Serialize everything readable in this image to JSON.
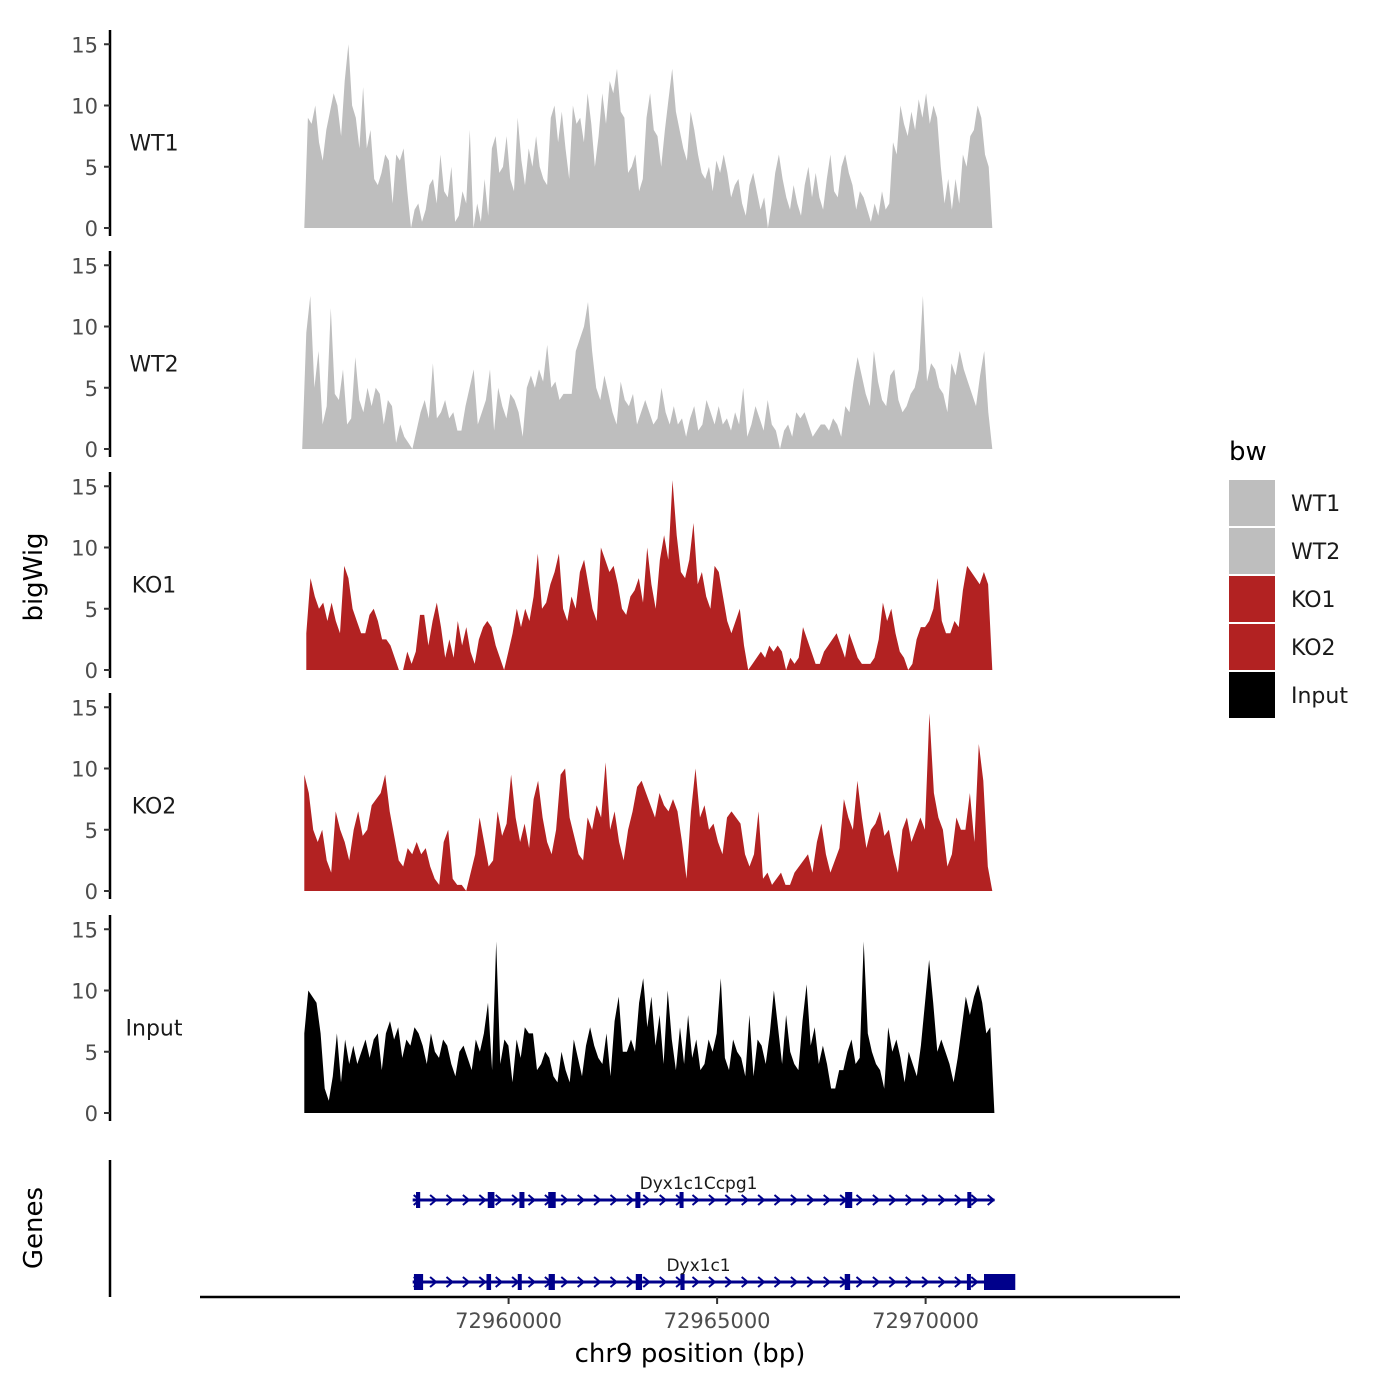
{
  "chart_data": {
    "type": "area",
    "ylabel": "bigWig",
    "xlabel": "chr9 position (bp)",
    "xlim": [
      72952600,
      72976100
    ],
    "ylim": [
      0,
      16
    ],
    "y_ticks": [
      0,
      5,
      10,
      15
    ],
    "y_tick_labels": [
      "0",
      "5",
      "10",
      "15"
    ],
    "x_ticks": [
      72960000,
      72965000,
      72970000
    ],
    "x_tick_labels": [
      "72960000",
      "72965000",
      "72970000"
    ],
    "legend": {
      "title": "bw",
      "position": "right",
      "items": [
        {
          "label": "WT1",
          "color": "#bebebe"
        },
        {
          "label": "WT2",
          "color": "#bebebe"
        },
        {
          "label": "KO1",
          "color": "#b22222"
        },
        {
          "label": "KO2",
          "color": "#b22222"
        },
        {
          "label": "Input",
          "color": "#000000"
        }
      ]
    },
    "series": [
      {
        "name": "WT1",
        "color": "#bebebe",
        "x_start": 72955100,
        "x_end": 72971600,
        "values": [
          0,
          9,
          8.5,
          10,
          7,
          5.5,
          8,
          9.5,
          11,
          10,
          7.5,
          12,
          15,
          10,
          9,
          6.5,
          11.5,
          6.5,
          8,
          4,
          3.5,
          4.5,
          6,
          5.5,
          2,
          6,
          5.5,
          6.5,
          3,
          0,
          1.5,
          2,
          0.5,
          1.5,
          3.5,
          4,
          2,
          6,
          3,
          2.5,
          5,
          0.5,
          1,
          3,
          2,
          8,
          0,
          2,
          0.5,
          4,
          1,
          6.5,
          7.5,
          4.5,
          5,
          7.5,
          4,
          3,
          9,
          5.5,
          3.5,
          6.5,
          5,
          7.5,
          5,
          4,
          3.5,
          9,
          10,
          7,
          9.5,
          6.5,
          4,
          10,
          8.5,
          9,
          7,
          11,
          8.5,
          5,
          7.5,
          11,
          8.5,
          12,
          11,
          13,
          9.5,
          9,
          4.5,
          5,
          6,
          3,
          4,
          9,
          11,
          8,
          7.5,
          5,
          8,
          10.5,
          13,
          9.5,
          8,
          6.5,
          5.5,
          9.5,
          8,
          6,
          4.5,
          4,
          5,
          3,
          5.5,
          4.5,
          6,
          4.5,
          2.5,
          3.5,
          4,
          2,
          1,
          3.5,
          4.5,
          3,
          1.5,
          2.5,
          0,
          2,
          4.5,
          6,
          4,
          2.5,
          1.5,
          3.5,
          2,
          1,
          3.5,
          5,
          2.5,
          4.5,
          2.5,
          1.5,
          4,
          6,
          3,
          2.5,
          5,
          6,
          4.5,
          3.5,
          1.5,
          3,
          2.5,
          1.5,
          0.5,
          2,
          1,
          3,
          1.5,
          2,
          7,
          6,
          10,
          8.5,
          7.5,
          9.5,
          8,
          10.5,
          9,
          11,
          8.5,
          10,
          9,
          5,
          2,
          4,
          1.5,
          4,
          2,
          6,
          5,
          7.5,
          8,
          10,
          9,
          6,
          5,
          0
        ]
      },
      {
        "name": "WT2",
        "color": "#bebebe",
        "x_start": 72955050,
        "x_end": 72971600,
        "values": [
          0,
          9.5,
          12.5,
          5,
          8,
          2,
          3.5,
          11.5,
          4.5,
          4,
          6.5,
          2,
          2.5,
          7.5,
          4,
          3,
          5,
          3.5,
          5,
          4.5,
          2,
          4,
          3.5,
          0.5,
          2,
          1,
          0.5,
          0,
          1.5,
          3,
          4,
          2.5,
          7,
          2.5,
          3,
          4,
          2.5,
          3,
          1.5,
          1.5,
          3.5,
          5,
          6.5,
          2,
          3,
          4,
          6.5,
          1.5,
          5,
          3.5,
          2.5,
          4.5,
          4,
          3,
          1,
          5,
          6,
          5,
          6.5,
          5.5,
          8.5,
          5,
          5.5,
          4,
          4.5,
          4.5,
          4.5,
          8,
          9,
          10,
          12,
          8,
          5,
          4,
          6,
          4.5,
          3,
          2,
          5.5,
          4,
          3.5,
          4.5,
          2,
          3,
          4,
          3,
          2,
          2.5,
          5,
          3,
          2,
          3.5,
          2,
          2.5,
          1,
          2.5,
          3.5,
          1.5,
          2,
          4,
          3,
          2,
          3.5,
          2,
          2.5,
          1.5,
          3,
          2,
          5,
          1,
          2,
          3.5,
          2.5,
          1.5,
          4,
          2,
          1.5,
          0,
          1.5,
          2,
          1,
          3,
          2.5,
          3,
          2,
          1,
          1.5,
          2,
          2,
          1.5,
          2.5,
          2,
          1,
          3.5,
          3,
          5.5,
          7.5,
          6,
          4.5,
          3.5,
          8,
          5.5,
          4,
          3.5,
          6,
          6.5,
          4,
          3,
          3.5,
          4.5,
          5,
          6.5,
          12.5,
          5.5,
          7,
          6.5,
          5,
          4.5,
          3,
          7,
          6,
          8,
          6.5,
          5.5,
          4.5,
          3.5,
          6,
          8,
          3,
          0
        ]
      },
      {
        "name": "KO1",
        "color": "#b22222",
        "x_start": 72955150,
        "x_end": 72971600,
        "values": [
          3,
          7.5,
          6,
          5,
          5.5,
          4,
          5.5,
          4,
          3,
          8.5,
          7.5,
          5,
          4,
          3,
          3,
          4.5,
          5,
          4,
          2.5,
          2.5,
          2,
          1,
          0,
          0,
          1.5,
          0.5,
          1.5,
          4.5,
          4.5,
          2,
          4,
          5.5,
          3.5,
          1,
          2.5,
          1,
          4,
          2,
          3.5,
          1.5,
          0.5,
          2.5,
          3.5,
          4,
          3.5,
          2,
          1,
          0,
          1.5,
          3,
          5,
          3.5,
          5,
          4,
          6,
          9.5,
          5,
          5.5,
          7,
          8,
          9.5,
          5,
          4,
          6,
          5,
          8,
          9,
          7,
          5,
          4,
          10,
          9,
          8,
          8.5,
          7,
          5,
          4.5,
          6,
          6.5,
          7.5,
          5.5,
          10,
          7,
          5,
          9,
          11,
          9,
          15.5,
          11,
          8,
          7.5,
          9,
          12,
          7,
          8,
          6,
          5,
          8.5,
          8,
          6,
          4,
          3,
          4,
          5,
          2,
          0,
          0.5,
          1,
          1.5,
          1,
          2,
          1.5,
          2,
          1.5,
          0,
          1,
          0.5,
          1,
          3.5,
          2.5,
          1.5,
          0.5,
          0.5,
          1.5,
          2,
          2.5,
          3,
          2,
          1,
          3,
          2,
          1,
          0.5,
          0.5,
          0.5,
          1,
          2.5,
          5.5,
          4,
          5,
          3,
          1.5,
          1,
          0,
          0.5,
          2.5,
          3.5,
          3.5,
          4,
          5,
          7.5,
          4,
          3,
          3,
          4,
          3.5,
          6.5,
          8.5,
          8,
          7.5,
          7,
          8,
          7,
          0
        ]
      },
      {
        "name": "KO2",
        "color": "#b22222",
        "x_start": 72955100,
        "x_end": 72971600,
        "values": [
          9.5,
          8,
          5,
          4,
          5,
          2.5,
          1.5,
          6.5,
          5,
          4,
          2.5,
          5,
          6.5,
          4.5,
          5,
          7,
          7.5,
          8,
          9.5,
          6.5,
          4.5,
          2.5,
          2,
          3.5,
          3,
          4,
          3,
          3.5,
          2,
          1,
          0.5,
          4,
          5,
          1,
          0.5,
          0.5,
          0,
          1.5,
          3,
          6,
          4,
          2,
          2.5,
          6.5,
          4.5,
          5.5,
          9.5,
          6,
          4,
          5.5,
          3.5,
          7.5,
          9,
          6,
          4,
          3,
          5,
          9.5,
          10,
          6,
          4.5,
          3,
          2.5,
          6,
          5,
          7,
          6,
          10.5,
          5,
          6.5,
          4,
          2.5,
          5,
          6.5,
          8.5,
          9,
          8,
          7,
          6,
          8,
          7,
          6.5,
          7.5,
          6.5,
          4,
          1,
          6.5,
          10,
          6,
          7,
          5,
          5.5,
          4,
          3,
          6,
          6.5,
          6,
          5.5,
          3,
          2,
          3,
          6.5,
          1,
          1.5,
          0.5,
          1,
          1.5,
          0.5,
          0.5,
          1.5,
          2,
          2.5,
          3,
          1.5,
          4,
          5.5,
          3,
          1.5,
          2.5,
          3.5,
          7.5,
          6,
          5,
          9,
          6,
          3.5,
          5,
          5.5,
          6.5,
          4.5,
          5,
          3,
          1.5,
          5,
          6,
          4,
          5,
          6,
          5,
          14.5,
          8,
          6,
          5,
          2,
          3,
          6,
          5,
          5,
          8,
          4,
          12,
          9,
          2,
          0
        ]
      },
      {
        "name": "Input",
        "color": "#000000",
        "x_start": 72955100,
        "x_end": 72971650,
        "values": [
          6.5,
          10,
          9.5,
          9,
          6.5,
          2,
          1,
          3,
          6.5,
          2.5,
          6,
          4,
          5.5,
          4,
          5,
          6,
          4.5,
          6,
          6.5,
          3.5,
          6.5,
          7.5,
          6,
          7,
          4.5,
          6,
          5.5,
          7,
          6.5,
          5.5,
          4,
          6.5,
          5,
          4.5,
          6,
          5.5,
          4,
          3,
          5,
          5.5,
          4.5,
          3.5,
          6,
          5,
          6.5,
          9,
          3.5,
          14,
          4,
          6,
          5.5,
          2.5,
          6,
          4.5,
          7,
          6.5,
          6.5,
          3.5,
          4,
          5,
          4.5,
          3,
          2.5,
          5,
          3.5,
          2.5,
          6,
          4.5,
          3,
          5.5,
          7,
          5.5,
          4.5,
          4,
          6.5,
          3,
          7.5,
          9.5,
          5,
          5,
          6,
          5,
          9,
          11,
          7,
          9.5,
          5.5,
          8,
          4,
          10,
          6,
          3.5,
          7,
          4,
          8,
          4.5,
          6,
          3.5,
          4,
          6,
          5,
          6.5,
          11,
          4.5,
          3.5,
          6,
          5,
          4.5,
          3,
          8,
          3,
          6,
          5.5,
          4,
          6.5,
          10,
          7,
          4,
          8,
          5,
          4,
          3.5,
          7.5,
          10.5,
          5.5,
          7,
          4,
          5.5,
          4,
          2,
          2,
          3.5,
          3.5,
          5,
          6,
          4,
          4.5,
          14,
          6.5,
          5,
          4,
          3.5,
          2,
          7,
          5,
          6,
          4.5,
          2.5,
          5,
          4,
          3,
          5.5,
          9,
          12.5,
          9,
          5,
          6,
          5,
          4,
          2.5,
          4.5,
          7,
          9.5,
          8,
          9.5,
          10.5,
          9,
          6.5,
          7,
          0
        ]
      }
    ],
    "genes": {
      "label": "Genes",
      "color": "#00008b",
      "transcripts": [
        {
          "name": "Dyx1c1Ccpg1",
          "start": 72957700,
          "end": 72971650,
          "strand": "+",
          "exons": [
            [
              72957780,
              72957880
            ],
            [
              72959500,
              72959660
            ],
            [
              72960260,
              72960380
            ],
            [
              72960950,
              72961130
            ],
            [
              72963040,
              72963160
            ],
            [
              72964100,
              72964180
            ],
            [
              72968070,
              72968240
            ],
            [
              72971000,
              72971090
            ]
          ]
        },
        {
          "name": "Dyx1c1",
          "start": 72957700,
          "end": 72971650,
          "strand": "+",
          "exons": [
            [
              72957730,
              72957950
            ],
            [
              72959470,
              72959580
            ],
            [
              72960220,
              72960310
            ],
            [
              72960960,
              72961110
            ],
            [
              72963050,
              72963200
            ],
            [
              72964120,
              72964220
            ],
            [
              72968060,
              72968190
            ],
            [
              72970990,
              72971080
            ],
            [
              72971400,
              72972150
            ]
          ]
        }
      ]
    }
  }
}
